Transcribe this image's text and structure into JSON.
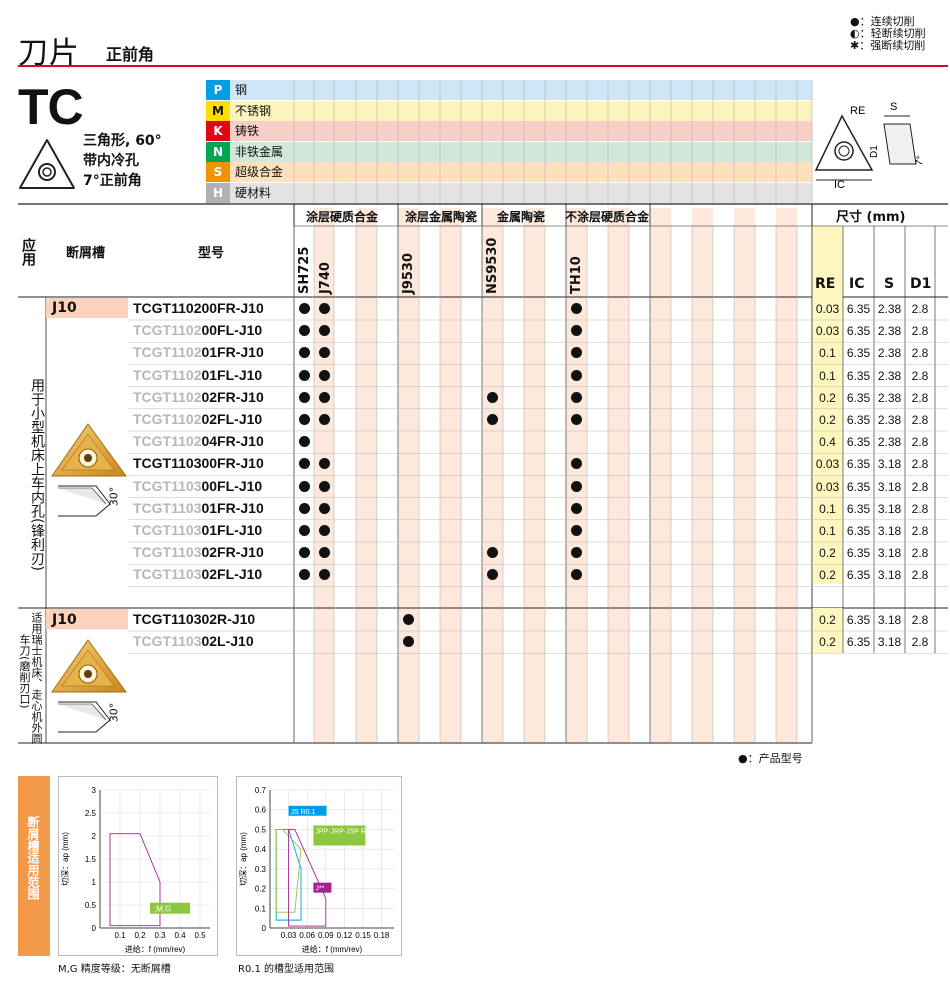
{
  "header": {
    "title": "刀片",
    "subtitle": "正前角"
  },
  "legend_top": [
    "●：连续切削",
    "◐：轻断续切削",
    "✱：强断续切削"
  ],
  "insert": {
    "code": "TC",
    "desc": [
      "三角形, 60°",
      "带内冷孔",
      "7°正前角"
    ]
  },
  "diagram_labels": {
    "re": "RE",
    "s": "S",
    "d1": "D1",
    "ic": "IC",
    "angle": "7°"
  },
  "materials": [
    {
      "code": "P",
      "name": "钢",
      "color": "#009fe3",
      "bg": "#cfe6f7"
    },
    {
      "code": "M",
      "name": "不锈钢",
      "color": "#ffde00",
      "bg": "#fcf3bd"
    },
    {
      "code": "K",
      "name": "铸铁",
      "color": "#e30613",
      "bg": "#f7cfc6"
    },
    {
      "code": "N",
      "name": "非铁金属",
      "color": "#00a651",
      "bg": "#cfe8da"
    },
    {
      "code": "S",
      "name": "超级合金",
      "color": "#f39200",
      "bg": "#fde1bd"
    },
    {
      "code": "H",
      "name": "硬材料",
      "color": "#b1b1b1",
      "bg": "#e3e3e3"
    }
  ],
  "table": {
    "col_apply": "应用",
    "col_chip": "断屑槽",
    "col_model": "型号",
    "groups": [
      "涂层硬质合金",
      "涂层金属陶瓷",
      "金属陶瓷",
      "不涂层硬质合金"
    ],
    "grades": [
      "SH725",
      "J740",
      "J9530",
      "NS9530",
      "TH10"
    ],
    "size_header": "尺寸 (mm)",
    "size_cols": [
      "RE",
      "IC",
      "S",
      "D1"
    ],
    "section1": {
      "apply": "用于小型机床上车内孔(锋利刃)",
      "chip": "J10",
      "angle": "30°",
      "rows": [
        {
          "dim": "TCGT1102",
          "bold": "00FR-J10",
          "full": true,
          "g": [
            1,
            1,
            0,
            0,
            1
          ],
          "re": "0.03",
          "ic": "6.35",
          "s": "2.38",
          "d1": "2.8"
        },
        {
          "dim": "TCGT1102",
          "bold": "00FL-J10",
          "full": false,
          "g": [
            1,
            1,
            0,
            0,
            1
          ],
          "re": "0.03",
          "ic": "6.35",
          "s": "2.38",
          "d1": "2.8"
        },
        {
          "dim": "TCGT1102",
          "bold": "01FR-J10",
          "full": false,
          "g": [
            1,
            1,
            0,
            0,
            1
          ],
          "re": "0.1",
          "ic": "6.35",
          "s": "2.38",
          "d1": "2.8"
        },
        {
          "dim": "TCGT1102",
          "bold": "01FL-J10",
          "full": false,
          "g": [
            1,
            1,
            0,
            0,
            1
          ],
          "re": "0.1",
          "ic": "6.35",
          "s": "2.38",
          "d1": "2.8"
        },
        {
          "dim": "TCGT1102",
          "bold": "02FR-J10",
          "full": false,
          "g": [
            1,
            1,
            0,
            1,
            1
          ],
          "re": "0.2",
          "ic": "6.35",
          "s": "2.38",
          "d1": "2.8"
        },
        {
          "dim": "TCGT1102",
          "bold": "02FL-J10",
          "full": false,
          "g": [
            1,
            1,
            0,
            1,
            1
          ],
          "re": "0.2",
          "ic": "6.35",
          "s": "2.38",
          "d1": "2.8"
        },
        {
          "dim": "TCGT1102",
          "bold": "04FR-J10",
          "full": false,
          "g": [
            1,
            0,
            0,
            0,
            0
          ],
          "re": "0.4",
          "ic": "6.35",
          "s": "2.38",
          "d1": "2.8"
        },
        {
          "dim": "TCGT1103",
          "bold": "00FR-J10",
          "full": true,
          "g": [
            1,
            1,
            0,
            0,
            1
          ],
          "re": "0.03",
          "ic": "6.35",
          "s": "3.18",
          "d1": "2.8"
        },
        {
          "dim": "TCGT1103",
          "bold": "00FL-J10",
          "full": false,
          "g": [
            1,
            1,
            0,
            0,
            1
          ],
          "re": "0.03",
          "ic": "6.35",
          "s": "3.18",
          "d1": "2.8"
        },
        {
          "dim": "TCGT1103",
          "bold": "01FR-J10",
          "full": false,
          "g": [
            1,
            1,
            0,
            0,
            1
          ],
          "re": "0.1",
          "ic": "6.35",
          "s": "3.18",
          "d1": "2.8"
        },
        {
          "dim": "TCGT1103",
          "bold": "01FL-J10",
          "full": false,
          "g": [
            1,
            1,
            0,
            0,
            1
          ],
          "re": "0.1",
          "ic": "6.35",
          "s": "3.18",
          "d1": "2.8"
        },
        {
          "dim": "TCGT1103",
          "bold": "02FR-J10",
          "full": false,
          "g": [
            1,
            1,
            0,
            1,
            1
          ],
          "re": "0.2",
          "ic": "6.35",
          "s": "3.18",
          "d1": "2.8"
        },
        {
          "dim": "TCGT1103",
          "bold": "02FL-J10",
          "full": false,
          "g": [
            1,
            1,
            0,
            1,
            1
          ],
          "re": "0.2",
          "ic": "6.35",
          "s": "3.18",
          "d1": "2.8"
        }
      ]
    },
    "section2": {
      "apply_lines": [
        "适用瑞士机床、走心机外圆",
        "车刀(磨削刃口)"
      ],
      "chip": "J10",
      "angle": "30°",
      "rows": [
        {
          "dim": "TCGT1103",
          "bold": "02R-J10",
          "full": true,
          "g": [
            0,
            0,
            1,
            0,
            0
          ],
          "re": "0.2",
          "ic": "6.35",
          "s": "3.18",
          "d1": "2.8"
        },
        {
          "dim": "TCGT1103",
          "bold": "02L-J10",
          "full": false,
          "g": [
            0,
            0,
            1,
            0,
            0
          ],
          "re": "0.2",
          "ic": "6.35",
          "s": "3.18",
          "d1": "2.8"
        }
      ]
    }
  },
  "footnote": "●：产品型号",
  "chipbreaker_section": "断屑槽适用范围",
  "chart_data": [
    {
      "type": "area",
      "title": "M,G 精度等级：无断屑槽",
      "xlabel": "进给：f (mm/rev)",
      "ylabel": "切深：ap (mm)",
      "xticks": [
        "0.1",
        "0.2",
        "0.3",
        "0.4",
        "0.5"
      ],
      "yticks": [
        "0",
        "0.5",
        "1",
        "1.5",
        "2",
        "2.5",
        "3"
      ],
      "xlim": [
        0,
        0.55
      ],
      "ylim": [
        0,
        3
      ],
      "series": [
        {
          "name": ";M,G",
          "polygon": [
            [
              0.05,
              0.05
            ],
            [
              0.05,
              2.05
            ],
            [
              0.2,
              2.05
            ],
            [
              0.3,
              1.0
            ],
            [
              0.3,
              0.05
            ]
          ]
        }
      ]
    },
    {
      "type": "area",
      "title": "R0.1 的槽型适用范围",
      "xlabel": "进给：f (mm/rev)",
      "ylabel": "切深：ap (mm)",
      "xticks": [
        "0.03",
        "0.06",
        "0.09",
        "0.12",
        "0.15",
        "0.18"
      ],
      "yticks": [
        "0",
        "0.1",
        "0.2",
        "0.3",
        "0.4",
        "0.5",
        "0.6",
        "0.7"
      ],
      "xlim": [
        0,
        0.2
      ],
      "ylim": [
        0,
        0.7
      ],
      "series": [
        {
          "name": "JS R0.1",
          "color": "#009fe3",
          "polygon": [
            [
              0.01,
              0.04
            ],
            [
              0.01,
              0.5
            ],
            [
              0.03,
              0.5
            ],
            [
              0.05,
              0.3
            ],
            [
              0.05,
              0.04
            ]
          ]
        },
        {
          "name": "JPP·JRP·JSP R0.1",
          "color": "#8dc63f",
          "polygon": [
            [
              0.01,
              0.08
            ],
            [
              0.01,
              0.5
            ],
            [
              0.02,
              0.5
            ],
            [
              0.05,
              0.4
            ],
            [
              0.04,
              0.08
            ]
          ]
        },
        {
          "name": "J**",
          "color": "#a3238e",
          "polygon": [
            [
              0.03,
              0.01
            ],
            [
              0.03,
              0.5
            ],
            [
              0.04,
              0.5
            ],
            [
              0.09,
              0.15
            ],
            [
              0.09,
              0.01
            ]
          ]
        }
      ]
    }
  ]
}
